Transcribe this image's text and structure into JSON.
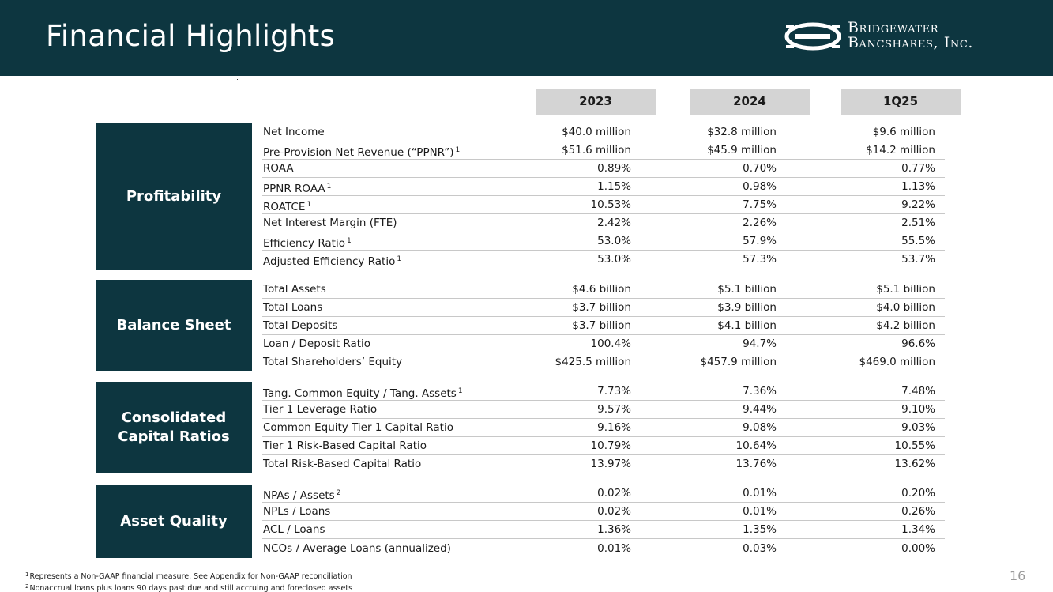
{
  "header": {
    "title": "Financial Highlights",
    "logo_line1": "Bridgewater",
    "logo_line2": "Bancshares, Inc."
  },
  "columns": [
    "2023",
    "2024",
    "1Q25"
  ],
  "sections": [
    {
      "name": "Profitability",
      "rows": [
        {
          "label": "Net Income",
          "sup": "",
          "values": [
            "$40.0 million",
            "$32.8 million",
            "$9.6 million"
          ]
        },
        {
          "label": "Pre-Provision Net Revenue (“PPNR”)",
          "sup": "1",
          "values": [
            "$51.6 million",
            "$45.9 million",
            "$14.2 million"
          ]
        },
        {
          "label": "ROAA",
          "sup": "",
          "values": [
            "0.89%",
            "0.70%",
            "0.77%"
          ]
        },
        {
          "label": "PPNR ROAA",
          "sup": "1",
          "values": [
            "1.15%",
            "0.98%",
            "1.13%"
          ]
        },
        {
          "label": "ROATCE",
          "sup": "1",
          "values": [
            "10.53%",
            "7.75%",
            "9.22%"
          ]
        },
        {
          "label": "Net Interest Margin (FTE)",
          "sup": "",
          "values": [
            "2.42%",
            "2.26%",
            "2.51%"
          ]
        },
        {
          "label": "Efficiency Ratio",
          "sup": "1",
          "values": [
            "53.0%",
            "57.9%",
            "55.5%"
          ]
        },
        {
          "label": "Adjusted Efficiency Ratio",
          "sup": "1",
          "values": [
            "53.0%",
            "57.3%",
            "53.7%"
          ]
        }
      ]
    },
    {
      "name": "Balance Sheet",
      "rows": [
        {
          "label": "Total Assets",
          "sup": "",
          "values": [
            "$4.6 billion",
            "$5.1 billion",
            "$5.1 billion"
          ]
        },
        {
          "label": "Total Loans",
          "sup": "",
          "values": [
            "$3.7 billion",
            "$3.9 billion",
            "$4.0 billion"
          ]
        },
        {
          "label": "Total Deposits",
          "sup": "",
          "values": [
            "$3.7 billion",
            "$4.1 billion",
            "$4.2 billion"
          ]
        },
        {
          "label": "Loan / Deposit Ratio",
          "sup": "",
          "values": [
            "100.4%",
            "94.7%",
            "96.6%"
          ]
        },
        {
          "label": "Total Shareholders’ Equity",
          "sup": "",
          "values": [
            "$425.5 million",
            "$457.9 million",
            "$469.0 million"
          ]
        }
      ]
    },
    {
      "name_line1": "Consolidated",
      "name_line2": "Capital Ratios",
      "rows": [
        {
          "label": "Tang. Common Equity / Tang. Assets",
          "sup": "1",
          "values": [
            "7.73%",
            "7.36%",
            "7.48%"
          ]
        },
        {
          "label": "Tier 1 Leverage Ratio",
          "sup": "",
          "values": [
            "9.57%",
            "9.44%",
            "9.10%"
          ]
        },
        {
          "label": "Common Equity Tier 1 Capital Ratio",
          "sup": "",
          "values": [
            "9.16%",
            "9.08%",
            "9.03%"
          ]
        },
        {
          "label": "Tier 1 Risk-Based Capital Ratio",
          "sup": "",
          "values": [
            "10.79%",
            "10.64%",
            "10.55%"
          ]
        },
        {
          "label": "Total Risk-Based Capital Ratio",
          "sup": "",
          "values": [
            "13.97%",
            "13.76%",
            "13.62%"
          ]
        }
      ]
    },
    {
      "name": "Asset Quality",
      "rows": [
        {
          "label": "NPAs / Assets",
          "sup": "2",
          "values": [
            "0.02%",
            "0.01%",
            "0.20%"
          ]
        },
        {
          "label": "NPLs / Loans",
          "sup": "",
          "values": [
            "0.02%",
            "0.01%",
            "0.26%"
          ]
        },
        {
          "label": "ACL / Loans",
          "sup": "",
          "values": [
            "1.36%",
            "1.35%",
            "1.34%"
          ]
        },
        {
          "label": "NCOs / Average Loans (annualized)",
          "sup": "",
          "values": [
            "0.01%",
            "0.03%",
            "0.00%"
          ]
        }
      ]
    }
  ],
  "footnotes": {
    "n1_mark": "1",
    "n1": "Represents a Non-GAAP financial measure. See Appendix for Non-GAAP reconciliation",
    "n2_mark": "2",
    "n2": "Nonaccrual loans plus loans 90 days past due and still accruing and foreclosed assets"
  },
  "page_number": "16",
  "colors": {
    "brand": "#0d3640",
    "header_cell": "#d4d4d4"
  }
}
